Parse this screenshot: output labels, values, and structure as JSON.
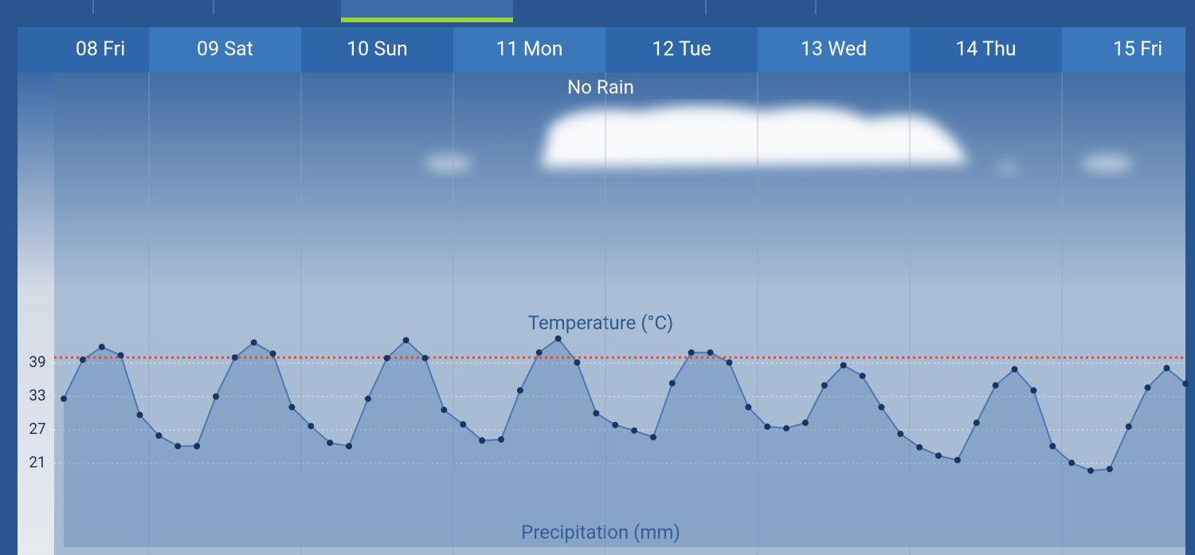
{
  "chart_data": {
    "type": "line",
    "days": [
      "08 Fri",
      "09 Sat",
      "10 Sun",
      "11 Mon",
      "12 Tue",
      "13 Wed",
      "14 Thu",
      "15 Fri"
    ],
    "precipitation_label": "No Rain",
    "title": "Temperature (°C)",
    "bottom_label": "Precipitation (mm)",
    "series": [
      {
        "name": "Temperature",
        "color": "#4a78b8",
        "values": [
          32.6,
          39.6,
          41.9,
          40.4,
          29.7,
          26,
          24.1,
          24.1,
          33,
          40,
          42.7,
          40.7,
          31.1,
          27.7,
          24.7,
          24.1,
          32.6,
          39.9,
          43.1,
          39.9,
          30.6,
          28,
          25.1,
          25.3,
          34.1,
          40.9,
          43.4,
          39.1,
          30,
          27.9,
          26.9,
          25.7,
          35.4,
          40.9,
          40.9,
          39.1,
          31.1,
          27.6,
          27.3,
          28.3,
          35,
          38.6,
          36.7,
          31.1,
          26.3,
          23.9,
          22.4,
          21.6,
          28.3,
          35,
          37.9,
          34.1,
          24.1,
          21.1,
          19.7,
          20,
          27.6,
          34.6,
          38.1,
          35.3
        ]
      }
    ],
    "reference_line": {
      "value": 40,
      "color": "#e8463c"
    },
    "ylim": [
      6,
      90
    ],
    "yticks": [
      21,
      27,
      33,
      39
    ],
    "grid": true
  }
}
